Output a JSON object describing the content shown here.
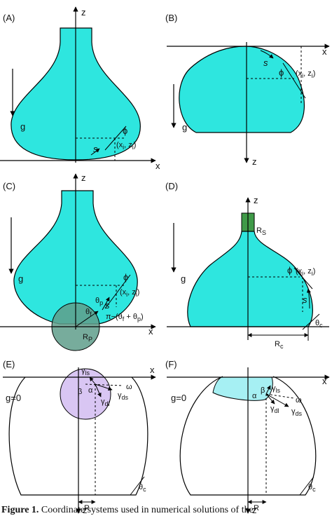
{
  "colors": {
    "liquid": "#2ee6df",
    "liquid_light": "#a6f0f3",
    "particle": "#5f9e8b",
    "sphere_purple": "#d9c6f3",
    "needle": "#3f9a48",
    "line": "#000000"
  },
  "panels": {
    "A": {
      "label": "(A)",
      "axis_z": "z",
      "axis_x": "x",
      "gravity": "g",
      "arc": "s",
      "angle": "ϕ",
      "point": "(x",
      "point_sub": "i",
      "point_mid": ", z",
      "point_end": ")"
    },
    "B": {
      "label": "(B)",
      "axis_x": "x",
      "axis_z": "z",
      "gravity": "g",
      "arc": "s",
      "angle": "ϕ",
      "point": "(x",
      "point_sub": "i",
      "point_mid": ", z",
      "point_end": ")"
    },
    "C": {
      "label": "(C)",
      "axis_z": "z",
      "axis_x": "x",
      "gravity": "g",
      "arc": "s",
      "angle": "ϕ",
      "point": "(x",
      "point_sub": "i",
      "point_mid": ", z",
      "point_end": ")",
      "theta_f": "θ",
      "theta_f_sub": "f",
      "theta_p": "θ",
      "theta_p_sub": "p",
      "pi_expr": "π−(θ",
      "pi_expr_2": " + θ",
      "pi_expr_end": ")",
      "radius": "R",
      "radius_sub": "P"
    },
    "D": {
      "label": "(D)",
      "axis_z": "z",
      "axis_x": "x",
      "gravity": "g",
      "arc": "s",
      "angle": "ϕ",
      "point": "(x",
      "point_sub": "i",
      "point_mid": ", z",
      "point_end": ")",
      "needle_r": "R",
      "needle_r_sub": "S",
      "contact_angle": "θ",
      "contact_angle_sub": "c",
      "contact_r": "R",
      "contact_r_sub": "c"
    },
    "E": {
      "label": "(E)",
      "axis_x": "x",
      "axis_z": "z",
      "gravity": "g=0",
      "gamma_ls": "γ",
      "gamma_ls_sub": "ls",
      "gamma_ds": "γ",
      "gamma_ds_sub": "ds",
      "gamma_dl": "γ",
      "gamma_dl_sub": "dl",
      "omega": "ω",
      "alpha": "α",
      "beta": "β",
      "contact_angle": "θ",
      "contact_angle_sub": "c",
      "radius": "R"
    },
    "F": {
      "label": "(F)",
      "axis_x": "x",
      "axis_z": "z",
      "gravity": "g=0",
      "gamma_ls": "γ",
      "gamma_ls_sub": "ls",
      "gamma_ds": "γ",
      "gamma_ds_sub": "ds",
      "gamma_dl": "γ",
      "gamma_dl_sub": "dl",
      "omega": "ω",
      "alpha": "α",
      "beta": "β",
      "contact_angle": "θ",
      "contact_angle_sub": "c",
      "radius": "R"
    }
  },
  "caption": {
    "lead": "Figure 1.",
    "text": "Coordinate systems used in numerical solutions of the"
  }
}
